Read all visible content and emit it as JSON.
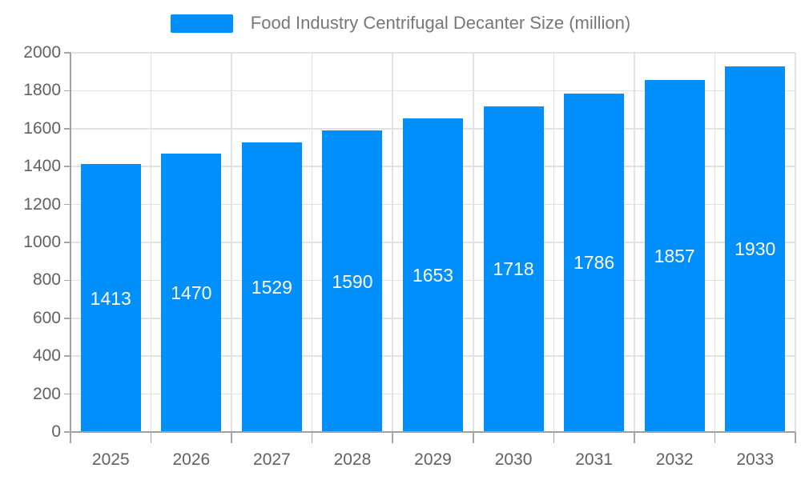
{
  "legend": {
    "label": "Food Industry Centrifugal Decanter Size (million)"
  },
  "chart_data": {
    "type": "bar",
    "title": "Food Industry Centrifugal Decanter Size (million)",
    "categories": [
      "2025",
      "2026",
      "2027",
      "2028",
      "2029",
      "2030",
      "2031",
      "2032",
      "2033"
    ],
    "series": [
      {
        "name": "Food Industry Centrifugal Decanter Size (million)",
        "values": [
          1413,
          1470,
          1529,
          1590,
          1653,
          1718,
          1786,
          1857,
          1930
        ]
      }
    ],
    "value_labels_shown": true,
    "xlabel": "",
    "ylabel": "",
    "ylim": [
      0,
      2000
    ],
    "ytick_step": 200,
    "ytick_labels": [
      "0",
      "200",
      "400",
      "600",
      "800",
      "1000",
      "1200",
      "1400",
      "1600",
      "1800",
      "2000"
    ],
    "grid": true,
    "legend_position": "top",
    "colors": {
      "bar": "#008FFB",
      "grid": "#e2e2e2",
      "axis": "#a0a0a0",
      "tick": "#a6a6a6",
      "axis_label": "#616161",
      "legend_text": "#777777",
      "value_label": "#ffffff",
      "background": "#ffffff"
    }
  }
}
